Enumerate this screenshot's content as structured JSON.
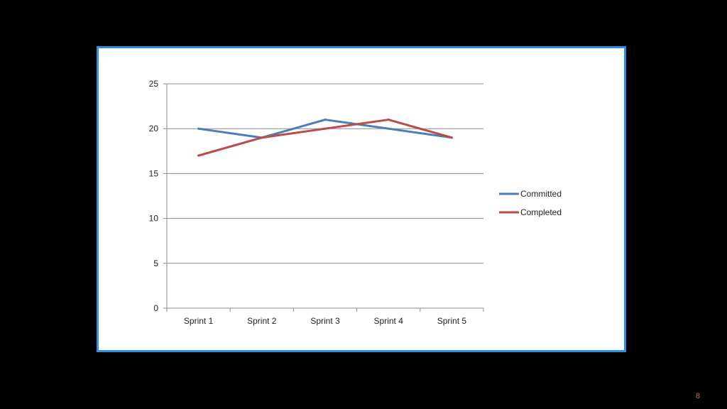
{
  "chart_data": {
    "type": "line",
    "categories": [
      "Sprint 1",
      "Sprint 2",
      "Sprint 3",
      "Sprint 4",
      "Sprint 5"
    ],
    "series": [
      {
        "name": "Committed",
        "values": [
          20,
          19,
          21,
          20,
          19
        ],
        "color": "#4a7ebb"
      },
      {
        "name": "Completed",
        "values": [
          17,
          19,
          20,
          21,
          19
        ],
        "color": "#be4b48"
      }
    ],
    "ylim": [
      0,
      25
    ],
    "yticks": [
      0,
      5,
      10,
      15,
      20,
      25
    ],
    "title": "",
    "xlabel": "",
    "ylabel": "",
    "grid": true,
    "legend_position": "right"
  },
  "slide": {
    "page_number": "8",
    "frame_border_color": "#2f8fe6",
    "background_color": "#000000"
  }
}
